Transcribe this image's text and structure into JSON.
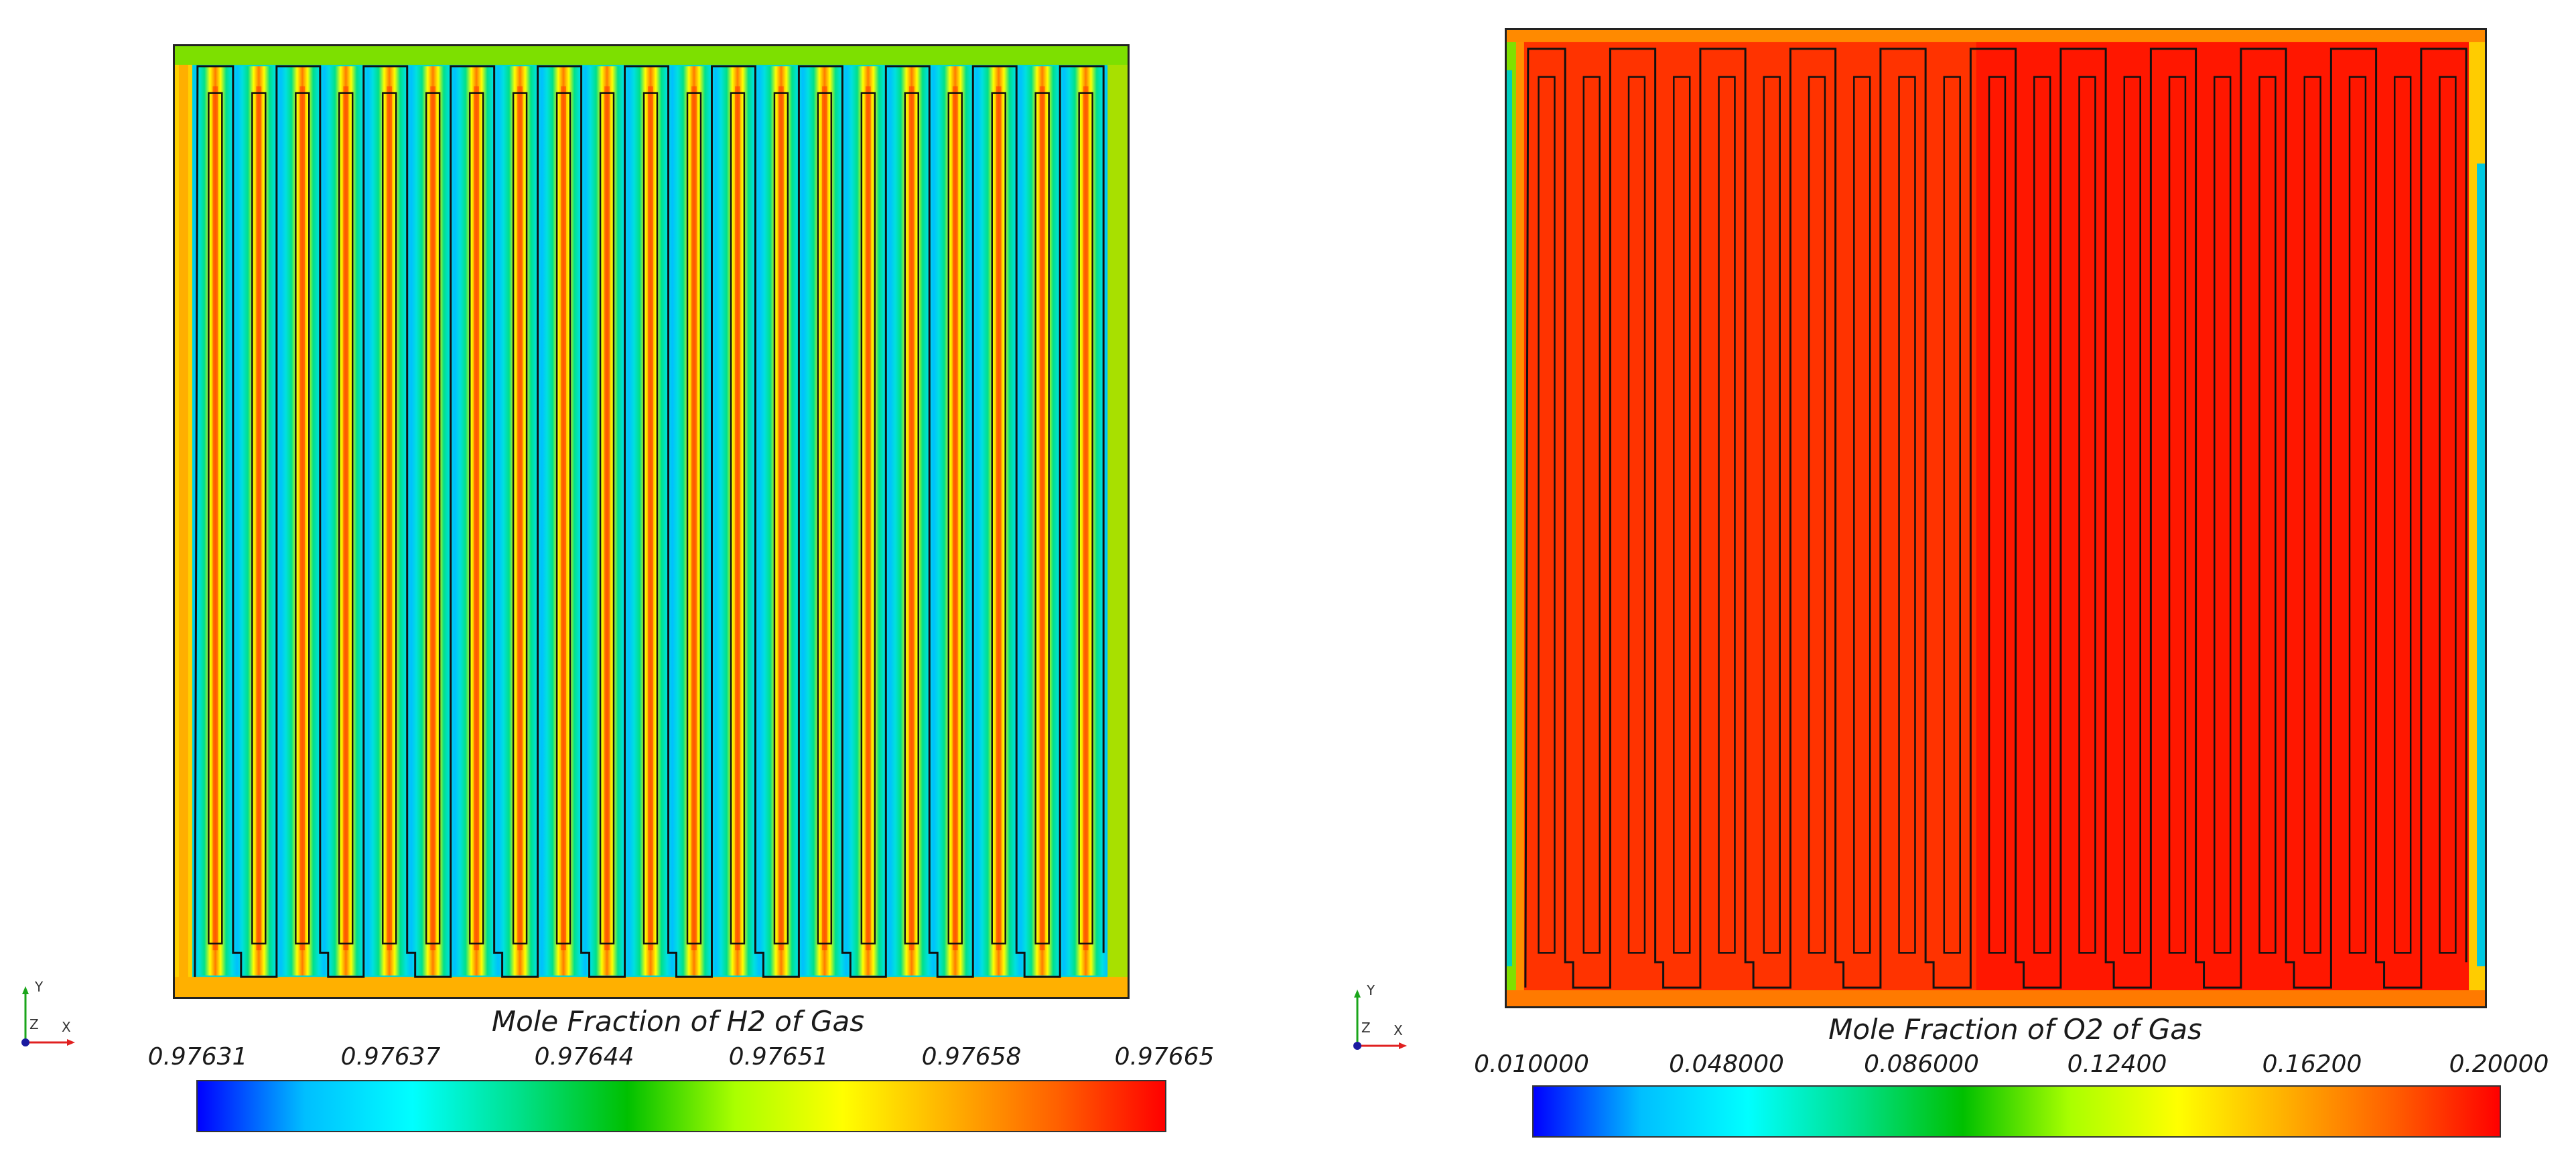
{
  "colormap": [
    "#0000ff",
    "#00bfff",
    "#00ffff",
    "#00e08a",
    "#00c000",
    "#aaff00",
    "#ffff00",
    "#ffb000",
    "#ff6000",
    "#ff0000"
  ],
  "axes_triad": {
    "y_label": "Y",
    "z_label": "Z",
    "x_label": "X"
  },
  "left_panel": {
    "legend_title": "Mole Fraction of H2 of Gas",
    "ticks": [
      "0.97631",
      "0.97637",
      "0.97644",
      "0.97651",
      "0.97658",
      "0.97665"
    ],
    "channel_count": 21
  },
  "right_panel": {
    "legend_title": "Mole Fraction of O2 of Gas",
    "ticks": [
      "0.010000",
      "0.048000",
      "0.086000",
      "0.12400",
      "0.16200",
      "0.20000"
    ],
    "channel_count": 21
  }
}
